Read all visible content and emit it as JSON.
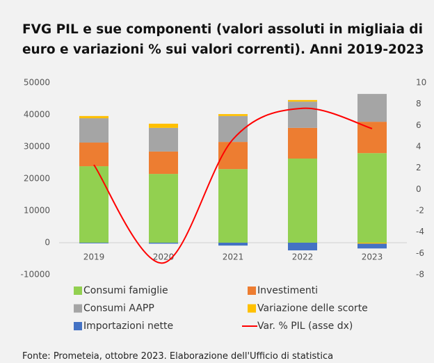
{
  "chart_data": {
    "type": "bar",
    "title": "FVG PIL e sue componenti (valori assoluti in migliaia di euro e variazioni % sui valori correnti). Anni 2019-2023",
    "source": "Fonte: Prometeia, ottobre 2023. Elaborazione dell'Ufficio di statistica",
    "categories": [
      "2019",
      "2020",
      "2021",
      "2022",
      "2023"
    ],
    "stacked": true,
    "series": [
      {
        "name": "Consumi famiglie",
        "color": "#92d050",
        "values": [
          23900,
          21500,
          23000,
          26300,
          28000
        ]
      },
      {
        "name": "Investimenti",
        "color": "#ed7d31",
        "values": [
          7400,
          7000,
          8500,
          9600,
          9800
        ]
      },
      {
        "name": "Consumi AAPP",
        "color": "#a5a5a5",
        "values": [
          7600,
          7400,
          8100,
          8200,
          8700
        ]
      },
      {
        "name": "Variazione delle scorte",
        "color": "#ffc000",
        "values": [
          700,
          1300,
          600,
          500,
          -300
        ]
      },
      {
        "name": "Importazioni nette",
        "color": "#4472c4",
        "values": [
          -200,
          -300,
          -900,
          -2400,
          -1500
        ]
      },
      {
        "name": "Var. % PIL (asse dx)",
        "color": "#ff0000",
        "type": "line",
        "axis": "y2",
        "values": [
          2.3,
          -6.9,
          4.7,
          7.6,
          5.7
        ]
      }
    ],
    "ylim": [
      -10000,
      50000
    ],
    "yticks": [
      -10000,
      0,
      10000,
      20000,
      30000,
      40000,
      50000
    ],
    "y2lim": [
      -8,
      10
    ],
    "y2ticks": [
      -8,
      -6,
      -4,
      -2,
      0,
      2,
      4,
      6,
      8,
      10
    ],
    "grid": false
  }
}
